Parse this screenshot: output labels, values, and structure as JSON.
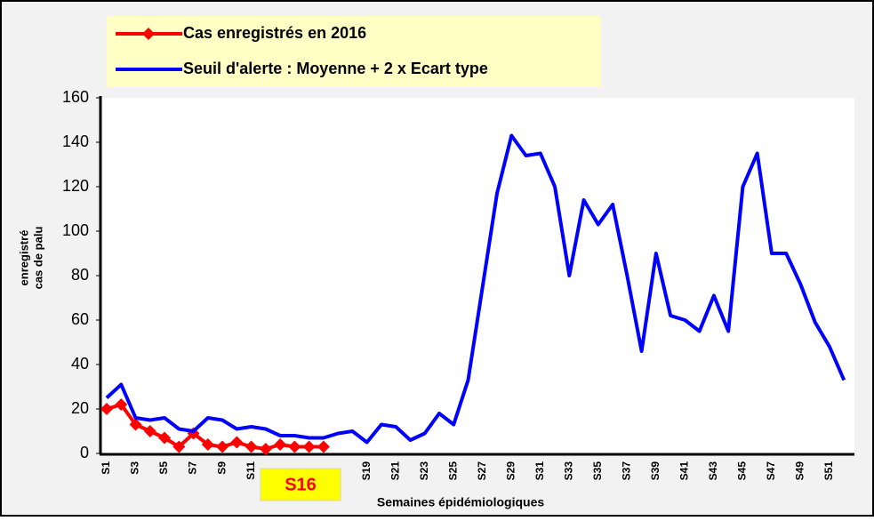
{
  "chart_data": {
    "type": "line",
    "categories": [
      "S1",
      null,
      "S3",
      null,
      "S5",
      null,
      "S7",
      null,
      "S9",
      null,
      "S11",
      null,
      null,
      null,
      null,
      null,
      null,
      null,
      "S19",
      null,
      "S21",
      null,
      "S23",
      null,
      "S25",
      null,
      "S27",
      null,
      "S29",
      null,
      "S31",
      null,
      "S33",
      null,
      "S35",
      null,
      "S37",
      null,
      "S39",
      null,
      "S41",
      null,
      "S43",
      null,
      "S45",
      null,
      "S47",
      null,
      "S49",
      null,
      "S51",
      null
    ],
    "series": [
      {
        "name": "Cas enregistrés en 2016",
        "color": "#ff0000",
        "marker": "diamond",
        "values": [
          20,
          22,
          13,
          10,
          7,
          3,
          9,
          4,
          3,
          5,
          3,
          2,
          4,
          3,
          3,
          3,
          null,
          null,
          null,
          null,
          null,
          null,
          null,
          null,
          null,
          null,
          null,
          null,
          null,
          null,
          null,
          null,
          null,
          null,
          null,
          null,
          null,
          null,
          null,
          null,
          null,
          null,
          null,
          null,
          null,
          null,
          null,
          null,
          null,
          null,
          null,
          null
        ]
      },
      {
        "name": "Seuil d'alerte : Moyenne + 2 x Ecart type",
        "color": "#0000ff",
        "values": [
          25,
          31,
          16,
          15,
          16,
          11,
          10,
          16,
          15,
          11,
          12,
          11,
          8,
          8,
          7,
          7,
          9,
          10,
          5,
          13,
          12,
          6,
          9,
          18,
          13,
          33,
          75,
          117,
          143,
          134,
          135,
          120,
          80,
          114,
          103,
          112,
          80,
          46,
          90,
          62,
          60,
          55,
          71,
          55,
          120,
          135,
          90,
          90,
          76,
          59,
          48,
          33
        ]
      }
    ],
    "ylim": [
      0,
      160
    ],
    "yticks": [
      0,
      20,
      40,
      60,
      80,
      100,
      120,
      140,
      160
    ],
    "grid": false,
    "ylabel": [
      "cas de palu",
      "enregistré"
    ],
    "xlabel": "Semaines épidémiologiques",
    "annotation": "S16",
    "legend": "top-left"
  }
}
